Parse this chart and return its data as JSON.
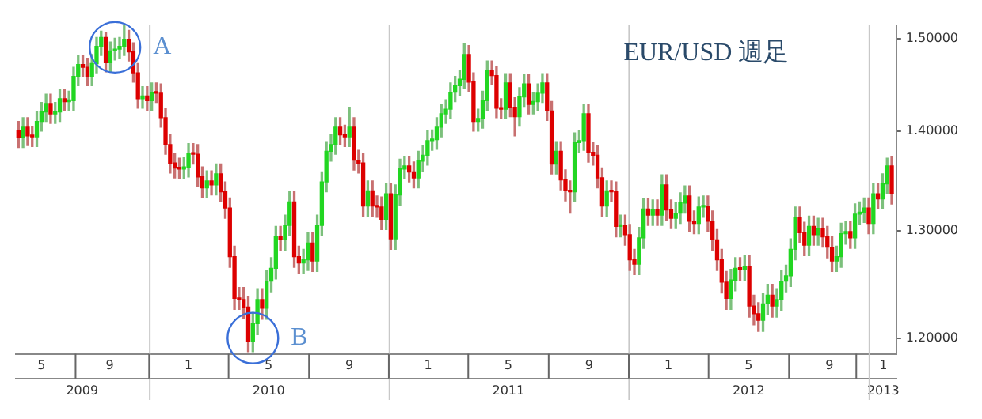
{
  "chart_data": {
    "type": "candlestick",
    "title": "EUR/USD 週足",
    "annotations": [
      {
        "text": "A",
        "x": "2009-11-09",
        "y": 1.49
      },
      {
        "text": "B",
        "x": "2010-06-07",
        "y": 1.2
      }
    ],
    "x": [
      "2009-06-15",
      "2009-06-22",
      "2009-06-29",
      "2009-07-06",
      "2009-07-13",
      "2009-07-20",
      "2009-07-27",
      "2009-08-03",
      "2009-08-10",
      "2009-08-17",
      "2009-08-24",
      "2009-08-31",
      "2009-09-07",
      "2009-09-14",
      "2009-09-21",
      "2009-09-28",
      "2009-10-05",
      "2009-10-12",
      "2009-10-19",
      "2009-10-26",
      "2009-11-02",
      "2009-11-09",
      "2009-11-16",
      "2009-11-23",
      "2009-11-30",
      "2009-12-07",
      "2009-12-14",
      "2009-12-21",
      "2009-12-28",
      "2010-01-04",
      "2010-01-11",
      "2010-01-18",
      "2010-01-25",
      "2010-02-01",
      "2010-02-08",
      "2010-02-15",
      "2010-02-22",
      "2010-03-01",
      "2010-03-08",
      "2010-03-15",
      "2010-03-22",
      "2010-03-29",
      "2010-04-05",
      "2010-04-12",
      "2010-04-19",
      "2010-04-26",
      "2010-05-03",
      "2010-05-10",
      "2010-05-17",
      "2010-05-24",
      "2010-05-31",
      "2010-06-07",
      "2010-06-14",
      "2010-06-21",
      "2010-06-28",
      "2010-07-05",
      "2010-07-12",
      "2010-07-19",
      "2010-07-26",
      "2010-08-02",
      "2010-08-09",
      "2010-08-16",
      "2010-08-23",
      "2010-08-30",
      "2010-09-06",
      "2010-09-13",
      "2010-09-20",
      "2010-09-27",
      "2010-10-04",
      "2010-10-11",
      "2010-10-18",
      "2010-10-25",
      "2010-11-01",
      "2010-11-08",
      "2010-11-15",
      "2010-11-22",
      "2010-11-29",
      "2010-12-06",
      "2010-12-13",
      "2010-12-20",
      "2010-12-27",
      "2011-01-03",
      "2011-01-10",
      "2011-01-17",
      "2011-01-24",
      "2011-01-31",
      "2011-02-07",
      "2011-02-14",
      "2011-02-21",
      "2011-02-28",
      "2011-03-07",
      "2011-03-14",
      "2011-03-21",
      "2011-03-28",
      "2011-04-04",
      "2011-04-11",
      "2011-04-18",
      "2011-04-25",
      "2011-05-02",
      "2011-05-09",
      "2011-05-16",
      "2011-05-23",
      "2011-05-30",
      "2011-06-06",
      "2011-06-13",
      "2011-06-20",
      "2011-06-27",
      "2011-07-04",
      "2011-07-11",
      "2011-07-18",
      "2011-07-25",
      "2011-08-01",
      "2011-08-08",
      "2011-08-15",
      "2011-08-22",
      "2011-08-29",
      "2011-09-05",
      "2011-09-12",
      "2011-09-19",
      "2011-09-26",
      "2011-10-03",
      "2011-10-10",
      "2011-10-17",
      "2011-10-24",
      "2011-10-31",
      "2011-11-07",
      "2011-11-14",
      "2011-11-21",
      "2011-11-28",
      "2011-12-05",
      "2011-12-12",
      "2011-12-19",
      "2011-12-26",
      "2012-01-02",
      "2012-01-09",
      "2012-01-16",
      "2012-01-23",
      "2012-01-30",
      "2012-02-06",
      "2012-02-13",
      "2012-02-20",
      "2012-02-27",
      "2012-03-05",
      "2012-03-12",
      "2012-03-19",
      "2012-03-26",
      "2012-04-02",
      "2012-04-09",
      "2012-04-16",
      "2012-04-23",
      "2012-04-30",
      "2012-05-07",
      "2012-05-14",
      "2012-05-21",
      "2012-05-28",
      "2012-06-04",
      "2012-06-11",
      "2012-06-18",
      "2012-06-25",
      "2012-07-02",
      "2012-07-09",
      "2012-07-16",
      "2012-07-23",
      "2012-07-30",
      "2012-08-06",
      "2012-08-13",
      "2012-08-20",
      "2012-08-27",
      "2012-09-03",
      "2012-09-10",
      "2012-09-17",
      "2012-09-24",
      "2012-10-01",
      "2012-10-08",
      "2012-10-15",
      "2012-10-22",
      "2012-10-29",
      "2012-11-05",
      "2012-11-12",
      "2012-11-19",
      "2012-11-26",
      "2012-12-03",
      "2012-12-10",
      "2012-12-17",
      "2012-12-24",
      "2012-12-31",
      "2013-01-07",
      "2013-01-14",
      "2013-01-21",
      "2013-01-28",
      "2013-02-04"
    ],
    "ohlc": [
      [
        1.4,
        1.41,
        1.383,
        1.393
      ],
      [
        1.393,
        1.414,
        1.383,
        1.404
      ],
      [
        1.404,
        1.414,
        1.385,
        1.395
      ],
      [
        1.395,
        1.405,
        1.384,
        1.394
      ],
      [
        1.394,
        1.42,
        1.384,
        1.41
      ],
      [
        1.41,
        1.43,
        1.4,
        1.42
      ],
      [
        1.42,
        1.439,
        1.41,
        1.429
      ],
      [
        1.429,
        1.439,
        1.408,
        1.418
      ],
      [
        1.418,
        1.43,
        1.408,
        1.42
      ],
      [
        1.42,
        1.444,
        1.41,
        1.434
      ],
      [
        1.434,
        1.444,
        1.421,
        1.431
      ],
      [
        1.431,
        1.442,
        1.421,
        1.432
      ],
      [
        1.432,
        1.468,
        1.422,
        1.458
      ],
      [
        1.458,
        1.481,
        1.448,
        1.471
      ],
      [
        1.471,
        1.481,
        1.458,
        1.468
      ],
      [
        1.468,
        1.478,
        1.448,
        1.458
      ],
      [
        1.458,
        1.482,
        1.448,
        1.472
      ],
      [
        1.472,
        1.501,
        1.462,
        1.491
      ],
      [
        1.491,
        1.508,
        1.481,
        1.501
      ],
      [
        1.501,
        1.506,
        1.463,
        1.473
      ],
      [
        1.473,
        1.496,
        1.463,
        1.486
      ],
      [
        1.486,
        1.5,
        1.476,
        1.488
      ],
      [
        1.488,
        1.501,
        1.478,
        1.491
      ],
      [
        1.491,
        1.514,
        1.481,
        1.499
      ],
      [
        1.499,
        1.509,
        1.475,
        1.485
      ],
      [
        1.485,
        1.495,
        1.452,
        1.462
      ],
      [
        1.462,
        1.472,
        1.424,
        1.434
      ],
      [
        1.434,
        1.447,
        1.424,
        1.437
      ],
      [
        1.437,
        1.447,
        1.422,
        1.432
      ],
      [
        1.432,
        1.451,
        1.422,
        1.441
      ],
      [
        1.441,
        1.451,
        1.43,
        1.44
      ],
      [
        1.44,
        1.45,
        1.404,
        1.414
      ],
      [
        1.414,
        1.424,
        1.376,
        1.386
      ],
      [
        1.386,
        1.396,
        1.357,
        1.367
      ],
      [
        1.367,
        1.377,
        1.352,
        1.362
      ],
      [
        1.362,
        1.372,
        1.351,
        1.361
      ],
      [
        1.361,
        1.373,
        1.351,
        1.363
      ],
      [
        1.363,
        1.387,
        1.353,
        1.377
      ],
      [
        1.377,
        1.387,
        1.366,
        1.376
      ],
      [
        1.376,
        1.386,
        1.343,
        1.353
      ],
      [
        1.353,
        1.363,
        1.332,
        1.342
      ],
      [
        1.342,
        1.359,
        1.332,
        1.349
      ],
      [
        1.349,
        1.359,
        1.335,
        1.345
      ],
      [
        1.345,
        1.366,
        1.335,
        1.356
      ],
      [
        1.356,
        1.366,
        1.328,
        1.338
      ],
      [
        1.338,
        1.348,
        1.312,
        1.322
      ],
      [
        1.322,
        1.332,
        1.265,
        1.275
      ],
      [
        1.275,
        1.285,
        1.226,
        1.236
      ],
      [
        1.236,
        1.246,
        1.226,
        1.235
      ],
      [
        1.235,
        1.246,
        1.218,
        1.228
      ],
      [
        1.228,
        1.238,
        1.188,
        1.197
      ],
      [
        1.197,
        1.223,
        1.188,
        1.213
      ],
      [
        1.213,
        1.245,
        1.203,
        1.235
      ],
      [
        1.235,
        1.245,
        1.217,
        1.227
      ],
      [
        1.227,
        1.262,
        1.217,
        1.252
      ],
      [
        1.252,
        1.274,
        1.242,
        1.264
      ],
      [
        1.264,
        1.304,
        1.254,
        1.294
      ],
      [
        1.294,
        1.304,
        1.281,
        1.291
      ],
      [
        1.291,
        1.315,
        1.281,
        1.305
      ],
      [
        1.305,
        1.338,
        1.295,
        1.328
      ],
      [
        1.328,
        1.338,
        1.265,
        1.275
      ],
      [
        1.275,
        1.285,
        1.259,
        1.269
      ],
      [
        1.269,
        1.282,
        1.259,
        1.272
      ],
      [
        1.272,
        1.298,
        1.262,
        1.288
      ],
      [
        1.288,
        1.298,
        1.261,
        1.271
      ],
      [
        1.271,
        1.315,
        1.261,
        1.305
      ],
      [
        1.305,
        1.358,
        1.295,
        1.348
      ],
      [
        1.348,
        1.389,
        1.338,
        1.379
      ],
      [
        1.379,
        1.396,
        1.369,
        1.386
      ],
      [
        1.386,
        1.414,
        1.376,
        1.404
      ],
      [
        1.404,
        1.414,
        1.386,
        1.396
      ],
      [
        1.396,
        1.406,
        1.384,
        1.394
      ],
      [
        1.394,
        1.425,
        1.384,
        1.404
      ],
      [
        1.404,
        1.414,
        1.36,
        1.37
      ],
      [
        1.37,
        1.38,
        1.357,
        1.367
      ],
      [
        1.367,
        1.377,
        1.314,
        1.324
      ],
      [
        1.324,
        1.349,
        1.314,
        1.339
      ],
      [
        1.339,
        1.349,
        1.314,
        1.324
      ],
      [
        1.324,
        1.334,
        1.313,
        1.323
      ],
      [
        1.323,
        1.333,
        1.301,
        1.311
      ],
      [
        1.311,
        1.346,
        1.301,
        1.336
      ],
      [
        1.336,
        1.346,
        1.282,
        1.292
      ],
      [
        1.292,
        1.345,
        1.282,
        1.335
      ],
      [
        1.335,
        1.371,
        1.325,
        1.361
      ],
      [
        1.361,
        1.374,
        1.351,
        1.364
      ],
      [
        1.364,
        1.374,
        1.348,
        1.358
      ],
      [
        1.358,
        1.368,
        1.342,
        1.352
      ],
      [
        1.352,
        1.379,
        1.342,
        1.369
      ],
      [
        1.369,
        1.385,
        1.359,
        1.375
      ],
      [
        1.375,
        1.4,
        1.365,
        1.39
      ],
      [
        1.39,
        1.401,
        1.38,
        1.391
      ],
      [
        1.391,
        1.414,
        1.381,
        1.404
      ],
      [
        1.404,
        1.428,
        1.394,
        1.418
      ],
      [
        1.418,
        1.433,
        1.408,
        1.423
      ],
      [
        1.423,
        1.451,
        1.413,
        1.441
      ],
      [
        1.441,
        1.458,
        1.431,
        1.448
      ],
      [
        1.448,
        1.465,
        1.438,
        1.455
      ],
      [
        1.455,
        1.494,
        1.445,
        1.482
      ],
      [
        1.482,
        1.492,
        1.442,
        1.452
      ],
      [
        1.452,
        1.462,
        1.4,
        1.41
      ],
      [
        1.41,
        1.423,
        1.4,
        1.413
      ],
      [
        1.413,
        1.442,
        1.403,
        1.432
      ],
      [
        1.432,
        1.475,
        1.422,
        1.465
      ],
      [
        1.465,
        1.475,
        1.449,
        1.459
      ],
      [
        1.459,
        1.469,
        1.414,
        1.424
      ],
      [
        1.424,
        1.434,
        1.413,
        1.423
      ],
      [
        1.423,
        1.461,
        1.413,
        1.451
      ],
      [
        1.451,
        1.461,
        1.415,
        1.425
      ],
      [
        1.425,
        1.435,
        1.395,
        1.415
      ],
      [
        1.415,
        1.446,
        1.405,
        1.436
      ],
      [
        1.436,
        1.46,
        1.426,
        1.45
      ],
      [
        1.45,
        1.46,
        1.418,
        1.428
      ],
      [
        1.428,
        1.441,
        1.418,
        1.431
      ],
      [
        1.431,
        1.45,
        1.421,
        1.44
      ],
      [
        1.44,
        1.461,
        1.43,
        1.451
      ],
      [
        1.451,
        1.461,
        1.411,
        1.421
      ],
      [
        1.421,
        1.431,
        1.356,
        1.366
      ],
      [
        1.366,
        1.389,
        1.356,
        1.379
      ],
      [
        1.379,
        1.389,
        1.34,
        1.35
      ],
      [
        1.35,
        1.36,
        1.329,
        1.339
      ],
      [
        1.339,
        1.349,
        1.317,
        1.338
      ],
      [
        1.338,
        1.398,
        1.328,
        1.388
      ],
      [
        1.388,
        1.4,
        1.378,
        1.39
      ],
      [
        1.39,
        1.428,
        1.38,
        1.418
      ],
      [
        1.418,
        1.428,
        1.368,
        1.378
      ],
      [
        1.378,
        1.388,
        1.365,
        1.375
      ],
      [
        1.375,
        1.385,
        1.342,
        1.352
      ],
      [
        1.352,
        1.362,
        1.314,
        1.324
      ],
      [
        1.324,
        1.349,
        1.314,
        1.339
      ],
      [
        1.339,
        1.349,
        1.328,
        1.338
      ],
      [
        1.338,
        1.348,
        1.294,
        1.304
      ],
      [
        1.304,
        1.315,
        1.294,
        1.305
      ],
      [
        1.305,
        1.315,
        1.286,
        1.296
      ],
      [
        1.296,
        1.306,
        1.262,
        1.272
      ],
      [
        1.272,
        1.282,
        1.258,
        1.268
      ],
      [
        1.268,
        1.303,
        1.258,
        1.293
      ],
      [
        1.293,
        1.331,
        1.283,
        1.321
      ],
      [
        1.321,
        1.331,
        1.305,
        1.315
      ],
      [
        1.315,
        1.33,
        1.305,
        1.32
      ],
      [
        1.32,
        1.33,
        1.305,
        1.315
      ],
      [
        1.315,
        1.355,
        1.305,
        1.345
      ],
      [
        1.345,
        1.355,
        1.31,
        1.32
      ],
      [
        1.32,
        1.33,
        1.302,
        1.312
      ],
      [
        1.312,
        1.327,
        1.302,
        1.317
      ],
      [
        1.317,
        1.337,
        1.307,
        1.327
      ],
      [
        1.327,
        1.344,
        1.317,
        1.334
      ],
      [
        1.334,
        1.344,
        1.299,
        1.309
      ],
      [
        1.309,
        1.319,
        1.297,
        1.307
      ],
      [
        1.307,
        1.333,
        1.297,
        1.323
      ],
      [
        1.323,
        1.334,
        1.313,
        1.324
      ],
      [
        1.324,
        1.334,
        1.299,
        1.309
      ],
      [
        1.309,
        1.319,
        1.281,
        1.291
      ],
      [
        1.291,
        1.301,
        1.262,
        1.272
      ],
      [
        1.272,
        1.282,
        1.241,
        1.251
      ],
      [
        1.251,
        1.261,
        1.226,
        1.236
      ],
      [
        1.236,
        1.263,
        1.226,
        1.253
      ],
      [
        1.253,
        1.274,
        1.243,
        1.264
      ],
      [
        1.264,
        1.274,
        1.253,
        1.263
      ],
      [
        1.263,
        1.276,
        1.253,
        1.266
      ],
      [
        1.266,
        1.276,
        1.219,
        1.229
      ],
      [
        1.229,
        1.239,
        1.212,
        1.222
      ],
      [
        1.222,
        1.232,
        1.206,
        1.216
      ],
      [
        1.216,
        1.241,
        1.206,
        1.231
      ],
      [
        1.231,
        1.249,
        1.221,
        1.239
      ],
      [
        1.239,
        1.249,
        1.219,
        1.229
      ],
      [
        1.229,
        1.245,
        1.219,
        1.235
      ],
      [
        1.235,
        1.262,
        1.225,
        1.252
      ],
      [
        1.252,
        1.267,
        1.242,
        1.257
      ],
      [
        1.257,
        1.292,
        1.247,
        1.282
      ],
      [
        1.282,
        1.323,
        1.272,
        1.313
      ],
      [
        1.313,
        1.323,
        1.288,
        1.298
      ],
      [
        1.298,
        1.308,
        1.276,
        1.286
      ],
      [
        1.286,
        1.314,
        1.276,
        1.304
      ],
      [
        1.304,
        1.314,
        1.286,
        1.296
      ],
      [
        1.296,
        1.312,
        1.286,
        1.302
      ],
      [
        1.302,
        1.312,
        1.284,
        1.294
      ],
      [
        1.294,
        1.304,
        1.274,
        1.284
      ],
      [
        1.284,
        1.294,
        1.261,
        1.271
      ],
      [
        1.271,
        1.285,
        1.261,
        1.275
      ],
      [
        1.275,
        1.307,
        1.265,
        1.297
      ],
      [
        1.297,
        1.309,
        1.287,
        1.299
      ],
      [
        1.299,
        1.309,
        1.283,
        1.293
      ],
      [
        1.293,
        1.326,
        1.283,
        1.316
      ],
      [
        1.316,
        1.328,
        1.306,
        1.318
      ],
      [
        1.318,
        1.332,
        1.308,
        1.322
      ],
      [
        1.322,
        1.332,
        1.297,
        1.307
      ],
      [
        1.307,
        1.346,
        1.297,
        1.336
      ],
      [
        1.336,
        1.346,
        1.321,
        1.331
      ],
      [
        1.331,
        1.356,
        1.321,
        1.346
      ],
      [
        1.346,
        1.372,
        1.336,
        1.364
      ],
      [
        1.364,
        1.374,
        1.326,
        1.336
      ]
    ],
    "xlim": [
      "2009-06-11",
      "2013-02-11"
    ],
    "xticks": [
      {
        "value": "2009-07-20",
        "label": "5"
      },
      {
        "value": "2009-11-01",
        "label": "9"
      },
      {
        "value": "2010-03-01",
        "label": "1"
      },
      {
        "value": "2010-07-01",
        "label": "5"
      },
      {
        "value": "2010-11-01",
        "label": "9"
      },
      {
        "value": "2011-03-01",
        "label": "1"
      },
      {
        "value": "2011-07-01",
        "label": "5"
      },
      {
        "value": "2011-11-01",
        "label": "9"
      },
      {
        "value": "2012-03-01",
        "label": "1"
      },
      {
        "value": "2012-07-01",
        "label": "5"
      },
      {
        "value": "2012-11-01",
        "label": "9"
      },
      {
        "value": "2013-01-22",
        "label": "1"
      }
    ],
    "x2lim": [
      "2009-06-11",
      "2013-02-11"
    ],
    "x2ticks": [
      {
        "value": "2009-09-20",
        "label": "2009"
      },
      {
        "value": "2010-07-01",
        "label": "2010"
      },
      {
        "value": "2011-07-01",
        "label": "2011"
      },
      {
        "value": "2012-07-01",
        "label": "2012"
      },
      {
        "value": "2013-01-22",
        "label": "2013"
      }
    ],
    "log": true,
    "ylim": [
      1.186,
      1.515
    ],
    "yticks": [
      {
        "value": 1.2,
        "label": "1.20000"
      },
      {
        "value": 1.3,
        "label": "1.30000"
      },
      {
        "value": 1.4,
        "label": "1.40000"
      },
      {
        "value": 1.5,
        "label": "1.50000"
      }
    ],
    "ref_lines": [
      {
        "axis": "x",
        "value": "2010-01-01",
        "color": "#c8c8c8"
      },
      {
        "axis": "x",
        "value": "2011-01-01",
        "color": "#c8c8c8"
      },
      {
        "axis": "x",
        "value": "2012-01-01",
        "color": "#c8c8c8"
      },
      {
        "axis": "x",
        "value": "2013-01-01",
        "color": "#c8c8c8"
      }
    ]
  }
}
